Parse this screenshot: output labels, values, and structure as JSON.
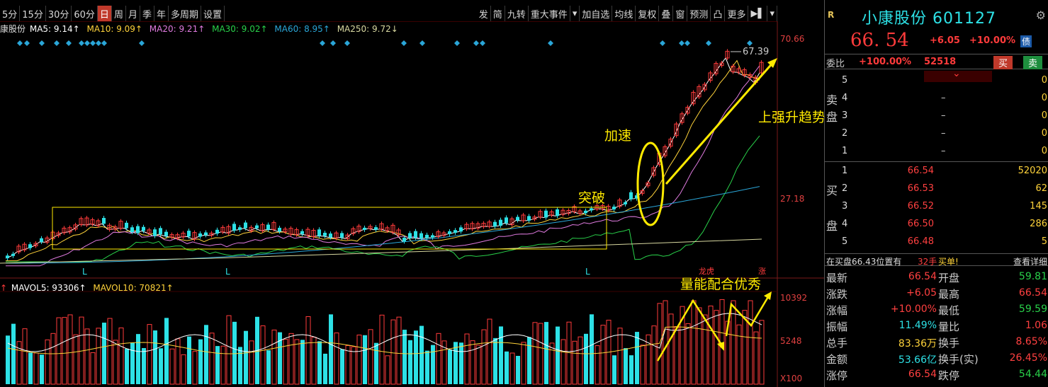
{
  "toolbar": {
    "items": [
      "5分",
      "15分",
      "30分",
      "60分",
      "日",
      "周",
      "月",
      "季",
      "年",
      "多周期",
      "设置"
    ],
    "active_index": 4,
    "right_items": [
      "发",
      "简",
      "九转",
      "重大事件",
      "▾",
      "加自选",
      "均线",
      "复权",
      "叠",
      "窗",
      "预测",
      "凸",
      "更多",
      "▶▌",
      "▾"
    ]
  },
  "ma_legend": {
    "name": "康股份",
    "ma5": "MA5: 9.14↑",
    "ma10": "MA10: 9.09↑",
    "ma20": "MA20: 9.21↑",
    "ma30": "MA30: 9.02↑",
    "ma60": "MA60: 8.95↑",
    "ma250": "MA250: 9.72↓"
  },
  "vol_legend": {
    "prefix": "↑",
    "mavol5": "MAVOL5: 93306↑",
    "mavol10": "MAVOL10: 70821↑"
  },
  "price_axis": [
    "70.66",
    "27.18"
  ],
  "volume_axis": [
    "10392",
    "5248",
    "X100"
  ],
  "annotations": {
    "high_label": "67.39",
    "jiasu": "加速",
    "tupo": "突破",
    "trend": "上强升趋势",
    "volume_note": "量能配合优秀",
    "longhu": "龙虎",
    "zhang": "涨",
    "L": "L"
  },
  "colors": {
    "up": "#ff3b3b",
    "down": "#2de1e6",
    "ma5": "#ffffff",
    "ma10": "#ffd33a",
    "ma20": "#e07be0",
    "ma30": "#29d14a",
    "ma60": "#2aa6d8",
    "ma250": "#d8d8a0",
    "annotation": "#ffea00"
  },
  "quote": {
    "tag": "R",
    "title": "小康股份 601127",
    "last": "66. 54",
    "change": "+6.05",
    "pct": "+10.00%",
    "bond": "债",
    "weibi_label": "委比",
    "weibi_pct": "+100.00%",
    "weibi_diff": "52518",
    "buy_btn": "买",
    "sell_btn": "卖",
    "sell_side_label": [
      "卖",
      "盘"
    ],
    "buy_side_label": [
      "买",
      "盘"
    ],
    "asks": [
      {
        "level": "5",
        "price": "",
        "vol": "0"
      },
      {
        "level": "4",
        "price": "–",
        "vol": "0"
      },
      {
        "level": "3",
        "price": "–",
        "vol": "0"
      },
      {
        "level": "2",
        "price": "–",
        "vol": "0"
      },
      {
        "level": "1",
        "price": "–",
        "vol": "0"
      }
    ],
    "bids": [
      {
        "level": "1",
        "price": "66.54",
        "vol": "52020"
      },
      {
        "level": "2",
        "price": "66.53",
        "vol": "62"
      },
      {
        "level": "3",
        "price": "66.52",
        "vol": "145"
      },
      {
        "level": "4",
        "price": "66.50",
        "vol": "286"
      },
      {
        "level": "5",
        "price": "66.48",
        "vol": "5"
      }
    ],
    "status": {
      "a": "在买盘66.43位置有",
      "b": "32手",
      "c": "买单!",
      "d": "查看详细"
    },
    "stats": [
      {
        "k1": "最新",
        "v1": "66.54",
        "k2": "开盘",
        "v2": "59.81",
        "c2": "g"
      },
      {
        "k1": "涨跌",
        "v1": "+6.05",
        "k2": "最高",
        "v2": "66.54"
      },
      {
        "k1": "涨幅",
        "v1": "+10.00%",
        "k2": "最低",
        "v2": "59.59",
        "c2": "g"
      },
      {
        "k1": "振幅",
        "v1": "11.49%",
        "k2": "量比",
        "v2": "1.06",
        "c1": "c"
      },
      {
        "k1": "总手",
        "v1": "83.36万",
        "k2": "换手",
        "v2": "8.65%",
        "c1": "y",
        "c2": "y"
      },
      {
        "k1": "金额",
        "v1": "53.66亿",
        "k2": "换手(实)",
        "v2": "26.45%",
        "c1": "c",
        "c2": "y"
      },
      {
        "k1": "涨停",
        "v1": "66.54",
        "k2": "跌停",
        "v2": "54.44",
        "c2": "g"
      }
    ]
  }
}
